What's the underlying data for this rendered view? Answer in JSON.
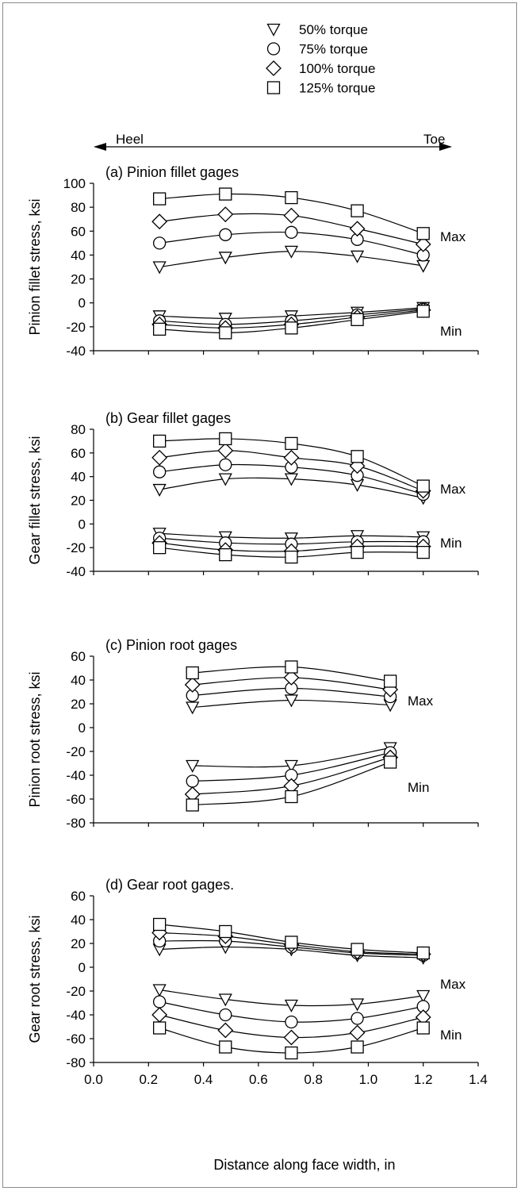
{
  "legend": [
    {
      "marker": "triangle-down",
      "label": "50% torque"
    },
    {
      "marker": "circle",
      "label": "75% torque"
    },
    {
      "marker": "diamond",
      "label": "100% torque"
    },
    {
      "marker": "square",
      "label": "125% torque"
    }
  ],
  "direction": {
    "left": "Heel",
    "right": "Toe"
  },
  "xlabel": "Distance along face width, in",
  "colors": {
    "line": "#000000",
    "marker_fill": "#ffffff",
    "frame": "#8a8a8a"
  },
  "chart_data": [
    {
      "type": "line",
      "title": "(a) Pinion fillet gages",
      "ylabel": "Pinion fillet stress, ksi",
      "xlim": [
        0.0,
        1.4
      ],
      "ylim": [
        -40,
        100
      ],
      "xticks": [
        0.0,
        0.2,
        0.4,
        0.6,
        0.8,
        1.0,
        1.2,
        1.4
      ],
      "yticks": [
        -40,
        -20,
        0,
        20,
        40,
        60,
        80,
        100
      ],
      "xtick_labels_shown": false,
      "annotations": [
        "Max",
        "Min"
      ],
      "series": [
        {
          "name": "50% torque",
          "group": "Max",
          "x": [
            0.24,
            0.48,
            0.72,
            0.96,
            1.2
          ],
          "y": [
            30,
            38,
            43,
            39,
            31
          ]
        },
        {
          "name": "75% torque",
          "group": "Max",
          "x": [
            0.24,
            0.48,
            0.72,
            0.96,
            1.2
          ],
          "y": [
            50,
            57,
            59,
            53,
            40
          ]
        },
        {
          "name": "100% torque",
          "group": "Max",
          "x": [
            0.24,
            0.48,
            0.72,
            0.96,
            1.2
          ],
          "y": [
            68,
            74,
            73,
            62,
            49
          ]
        },
        {
          "name": "125% torque",
          "group": "Max",
          "x": [
            0.24,
            0.48,
            0.72,
            0.96,
            1.2
          ],
          "y": [
            87,
            91,
            88,
            77,
            58
          ]
        },
        {
          "name": "50% torque",
          "group": "Min",
          "x": [
            0.24,
            0.48,
            0.72,
            0.96,
            1.2
          ],
          "y": [
            -11,
            -13,
            -11,
            -8,
            -4
          ]
        },
        {
          "name": "75% torque",
          "group": "Min",
          "x": [
            0.24,
            0.48,
            0.72,
            0.96,
            1.2
          ],
          "y": [
            -15,
            -18,
            -15,
            -10,
            -5
          ]
        },
        {
          "name": "100% torque",
          "group": "Min",
          "x": [
            0.24,
            0.48,
            0.72,
            0.96,
            1.2
          ],
          "y": [
            -18,
            -21,
            -18,
            -12,
            -6
          ]
        },
        {
          "name": "125% torque",
          "group": "Min",
          "x": [
            0.24,
            0.48,
            0.72,
            0.96,
            1.2
          ],
          "y": [
            -22,
            -25,
            -21,
            -14,
            -7
          ]
        }
      ]
    },
    {
      "type": "line",
      "title": "(b) Gear fillet gages",
      "ylabel": "Gear fillet stress, ksi",
      "xlim": [
        0.0,
        1.4
      ],
      "ylim": [
        -40,
        80
      ],
      "xticks": [
        0.0,
        0.2,
        0.4,
        0.6,
        0.8,
        1.0,
        1.2,
        1.4
      ],
      "yticks": [
        -40,
        -20,
        0,
        20,
        40,
        60,
        80
      ],
      "xtick_labels_shown": false,
      "annotations": [
        "Max",
        "Min"
      ],
      "series": [
        {
          "name": "50% torque",
          "group": "Max",
          "x": [
            0.24,
            0.48,
            0.72,
            0.96,
            1.2
          ],
          "y": [
            29,
            38,
            38,
            33,
            22
          ]
        },
        {
          "name": "75% torque",
          "group": "Max",
          "x": [
            0.24,
            0.48,
            0.72,
            0.96,
            1.2
          ],
          "y": [
            44,
            50,
            48,
            41,
            25
          ]
        },
        {
          "name": "100% torque",
          "group": "Max",
          "x": [
            0.24,
            0.48,
            0.72,
            0.96,
            1.2
          ],
          "y": [
            56,
            62,
            56,
            49,
            28
          ]
        },
        {
          "name": "125% torque",
          "group": "Max",
          "x": [
            0.24,
            0.48,
            0.72,
            0.96,
            1.2
          ],
          "y": [
            70,
            72,
            68,
            57,
            32
          ]
        },
        {
          "name": "50% torque",
          "group": "Min",
          "x": [
            0.24,
            0.48,
            0.72,
            0.96,
            1.2
          ],
          "y": [
            -8,
            -11,
            -12,
            -10,
            -11
          ]
        },
        {
          "name": "75% torque",
          "group": "Min",
          "x": [
            0.24,
            0.48,
            0.72,
            0.96,
            1.2
          ],
          "y": [
            -12,
            -16,
            -17,
            -15,
            -15
          ]
        },
        {
          "name": "100% torque",
          "group": "Min",
          "x": [
            0.24,
            0.48,
            0.72,
            0.96,
            1.2
          ],
          "y": [
            -16,
            -22,
            -23,
            -19,
            -19
          ]
        },
        {
          "name": "125% torque",
          "group": "Min",
          "x": [
            0.24,
            0.48,
            0.72,
            0.96,
            1.2
          ],
          "y": [
            -20,
            -26,
            -28,
            -24,
            -24
          ]
        }
      ]
    },
    {
      "type": "line",
      "title": "(c) Pinion root gages",
      "ylabel": "Pinion root stress, ksi",
      "xlim": [
        0.0,
        1.4
      ],
      "ylim": [
        -80,
        60
      ],
      "xticks": [
        0.0,
        0.2,
        0.4,
        0.6,
        0.8,
        1.0,
        1.2,
        1.4
      ],
      "yticks": [
        -80,
        -60,
        -40,
        -20,
        0,
        20,
        40,
        60
      ],
      "xtick_labels_shown": false,
      "annotations": [
        "Max",
        "Min"
      ],
      "series": [
        {
          "name": "50% torque",
          "group": "Max",
          "x": [
            0.36,
            0.72,
            1.08
          ],
          "y": [
            17,
            23,
            19
          ]
        },
        {
          "name": "75% torque",
          "group": "Max",
          "x": [
            0.36,
            0.72,
            1.08
          ],
          "y": [
            27,
            33,
            26
          ]
        },
        {
          "name": "100% torque",
          "group": "Max",
          "x": [
            0.36,
            0.72,
            1.08
          ],
          "y": [
            36,
            42,
            32
          ]
        },
        {
          "name": "125% torque",
          "group": "Max",
          "x": [
            0.36,
            0.72,
            1.08
          ],
          "y": [
            46,
            51,
            39
          ]
        },
        {
          "name": "50% torque",
          "group": "Min",
          "x": [
            0.36,
            0.72,
            1.08
          ],
          "y": [
            -32,
            -32,
            -17
          ]
        },
        {
          "name": "75% torque",
          "group": "Min",
          "x": [
            0.36,
            0.72,
            1.08
          ],
          "y": [
            -45,
            -40,
            -21
          ]
        },
        {
          "name": "100% torque",
          "group": "Min",
          "x": [
            0.36,
            0.72,
            1.08
          ],
          "y": [
            -56,
            -49,
            -25
          ]
        },
        {
          "name": "125% torque",
          "group": "Min",
          "x": [
            0.36,
            0.72,
            1.08
          ],
          "y": [
            -65,
            -58,
            -29
          ]
        }
      ]
    },
    {
      "type": "line",
      "title": "(d) Gear root gages.",
      "ylabel": "Gear root stress, ksi",
      "xlim": [
        0.0,
        1.4
      ],
      "ylim": [
        -80,
        60
      ],
      "xticks": [
        0.0,
        0.2,
        0.4,
        0.6,
        0.8,
        1.0,
        1.2,
        1.4
      ],
      "yticks": [
        -80,
        -60,
        -40,
        -20,
        0,
        20,
        40,
        60
      ],
      "xtick_labels_shown": true,
      "annotations": [
        "Max",
        "Min"
      ],
      "series": [
        {
          "name": "50% torque",
          "group": "Max",
          "x": [
            0.24,
            0.48,
            0.72,
            0.96,
            1.2
          ],
          "y": [
            15,
            17,
            15,
            10,
            8
          ]
        },
        {
          "name": "75% torque",
          "group": "Max",
          "x": [
            0.24,
            0.48,
            0.72,
            0.96,
            1.2
          ],
          "y": [
            22,
            22,
            17,
            12,
            10
          ]
        },
        {
          "name": "100% torque",
          "group": "Max",
          "x": [
            0.24,
            0.48,
            0.72,
            0.96,
            1.2
          ],
          "y": [
            29,
            26,
            19,
            13,
            11
          ]
        },
        {
          "name": "125% torque",
          "group": "Max",
          "x": [
            0.24,
            0.48,
            0.72,
            0.96,
            1.2
          ],
          "y": [
            36,
            30,
            21,
            15,
            12
          ]
        },
        {
          "name": "50% torque",
          "group": "Min",
          "x": [
            0.24,
            0.48,
            0.72,
            0.96,
            1.2
          ],
          "y": [
            -19,
            -27,
            -32,
            -31,
            -24
          ]
        },
        {
          "name": "75% torque",
          "group": "Min",
          "x": [
            0.24,
            0.48,
            0.72,
            0.96,
            1.2
          ],
          "y": [
            -29,
            -40,
            -46,
            -43,
            -33
          ]
        },
        {
          "name": "100% torque",
          "group": "Min",
          "x": [
            0.24,
            0.48,
            0.72,
            0.96,
            1.2
          ],
          "y": [
            -40,
            -53,
            -59,
            -55,
            -42
          ]
        },
        {
          "name": "125% torque",
          "group": "Min",
          "x": [
            0.24,
            0.48,
            0.72,
            0.96,
            1.2
          ],
          "y": [
            -51,
            -67,
            -72,
            -67,
            -51
          ]
        }
      ]
    }
  ]
}
